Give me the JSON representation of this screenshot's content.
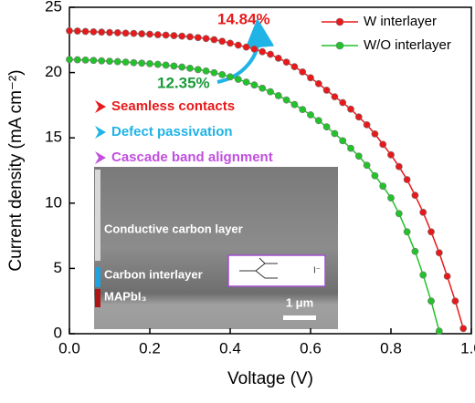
{
  "chart_data": {
    "type": "line",
    "xlabel": "Voltage (V)",
    "ylabel": "Current density (mA cm⁻²)",
    "xlim": [
      0,
      1.0
    ],
    "ylim": [
      0,
      25
    ],
    "xticks": [
      {
        "value": 0,
        "label": "0.0"
      },
      0.2,
      0.4,
      0.6,
      0.8,
      {
        "value": 1.0,
        "label": "1.0"
      }
    ],
    "yticks": [
      0,
      5,
      10,
      15,
      20,
      25
    ],
    "legend": "upper right",
    "x": [
      0,
      0.02,
      0.04,
      0.06,
      0.08,
      0.1,
      0.12,
      0.14,
      0.16,
      0.18,
      0.2,
      0.22,
      0.24,
      0.26,
      0.28,
      0.3,
      0.32,
      0.34,
      0.36,
      0.38,
      0.4,
      0.42,
      0.44,
      0.46,
      0.48,
      0.5,
      0.52,
      0.54,
      0.56,
      0.58,
      0.6,
      0.62,
      0.64,
      0.66,
      0.68,
      0.7,
      0.72,
      0.74,
      0.76,
      0.78,
      0.8,
      0.82,
      0.84,
      0.86,
      0.88,
      0.9,
      0.92,
      0.94,
      0.96,
      0.98
    ],
    "series": [
      {
        "name": "W interlayer",
        "color": "#e8191a",
        "values": [
          23.2,
          23.18,
          23.15,
          23.12,
          23.1,
          23.07,
          23.05,
          23.02,
          23.0,
          22.97,
          22.94,
          22.9,
          22.87,
          22.83,
          22.79,
          22.74,
          22.68,
          22.61,
          22.52,
          22.4,
          22.25,
          22.1,
          21.95,
          21.8,
          21.6,
          21.4,
          21.1,
          20.8,
          20.45,
          20.05,
          19.6,
          19.15,
          18.65,
          18.15,
          17.7,
          17.2,
          16.6,
          16.0,
          15.3,
          14.5,
          13.7,
          12.8,
          11.8,
          10.6,
          9.3,
          7.8,
          6.2,
          4.4,
          2.5,
          0.4
        ]
      },
      {
        "name": "W/O interlayer",
        "color": "#22c22a",
        "values": [
          21.0,
          20.98,
          20.96,
          20.93,
          20.9,
          20.87,
          20.84,
          20.8,
          20.76,
          20.72,
          20.68,
          20.63,
          20.57,
          20.5,
          20.42,
          20.33,
          20.23,
          20.12,
          19.99,
          19.84,
          19.67,
          19.48,
          19.27,
          19.05,
          18.8,
          18.53,
          18.23,
          17.9,
          17.55,
          17.17,
          16.76,
          16.32,
          15.84,
          15.33,
          14.78,
          14.2,
          13.6,
          12.9,
          12.1,
          11.3,
          10.4,
          9.2,
          7.8,
          6.3,
          4.5,
          2.5,
          0.2,
          null,
          null,
          null
        ]
      }
    ],
    "annotations": [
      {
        "text": "14.84%",
        "color": "#e8191a"
      },
      {
        "text": "12.35%",
        "color": "#1a9a3a"
      }
    ],
    "bullets": [
      {
        "text": "Seamless contacts",
        "color": "#e8191a"
      },
      {
        "text": "Defect passivation",
        "color": "#1fb3e6"
      },
      {
        "text": "Cascade band alignment",
        "color": "#c24fe0"
      }
    ],
    "inset": {
      "layers": [
        "Conductive carbon layer",
        "Carbon interlayer",
        "MAPbI₃"
      ],
      "scale": "1 μm",
      "ion": "I⁻"
    }
  }
}
